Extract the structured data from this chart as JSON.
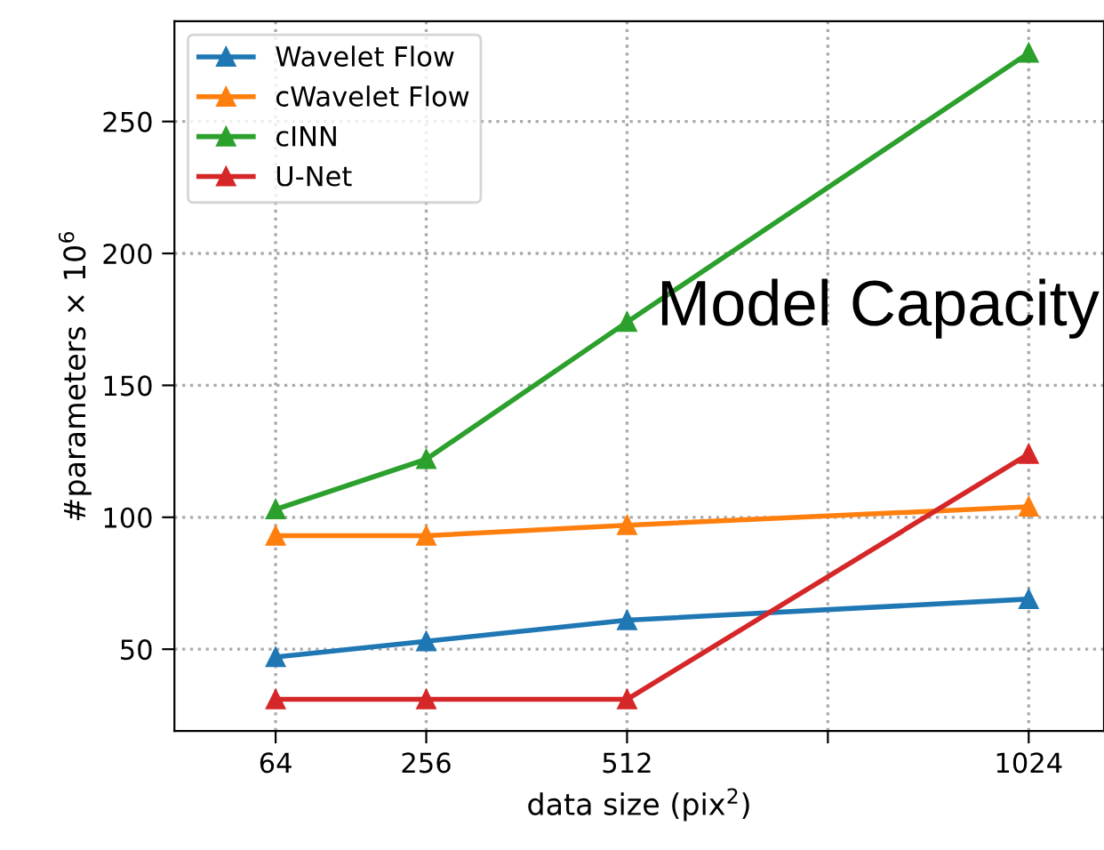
{
  "chart_data": {
    "type": "line",
    "xlabel": "data size (pix$^{2}$)",
    "ylabel": "#parameters × 10$^{6}$",
    "annotations": [
      "Model Capacity"
    ],
    "x": [
      64,
      256,
      512,
      1024
    ],
    "series": [
      {
        "name": "Wavelet Flow",
        "color": "#1f77b4",
        "values": [
          47,
          53,
          61,
          69
        ]
      },
      {
        "name": "cWavelet Flow",
        "color": "#ff7f0e",
        "values": [
          93,
          93,
          97,
          104
        ]
      },
      {
        "name": "cINN",
        "color": "#2ca02c",
        "values": [
          103,
          122,
          174,
          276
        ]
      },
      {
        "name": "U-Net",
        "color": "#d62728",
        "values": [
          31,
          31,
          31,
          124
        ]
      }
    ],
    "xlim": [
      -65,
      1120
    ],
    "xticks": [
      64,
      256,
      512,
      {
        "value": 768,
        "label": null
      },
      1024
    ],
    "ylim": [
      19,
      288
    ],
    "yticks": [
      50,
      100,
      150,
      200,
      250
    ],
    "grid": true,
    "legend": "top left",
    "marker": "triangle",
    "line_style": "solid"
  }
}
